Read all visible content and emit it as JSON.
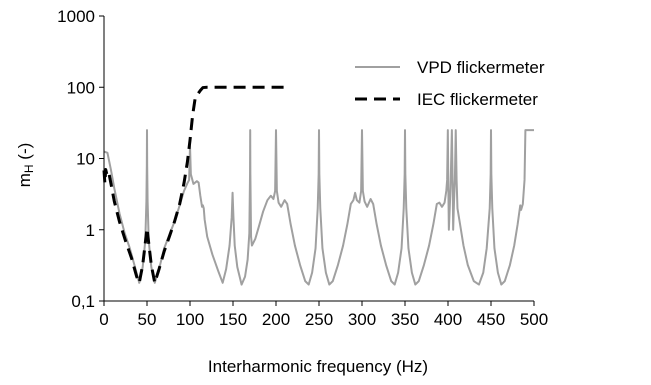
{
  "chart_data": {
    "type": "line",
    "title": "",
    "xlabel": "Interharmonic frequency (Hz)",
    "ylabel": {
      "main": "m",
      "sub": "H",
      "suffix": " (-)"
    },
    "xlim": [
      0,
      500
    ],
    "ylim": [
      0.1,
      1000
    ],
    "yscale": "log",
    "x_ticks": [
      "0",
      "50",
      "100",
      "150",
      "200",
      "250",
      "300",
      "350",
      "400",
      "450",
      "500"
    ],
    "x_tick_values": [
      0,
      50,
      100,
      150,
      200,
      250,
      300,
      350,
      400,
      450,
      500
    ],
    "y_ticks": [
      "0,1",
      "1",
      "10",
      "100",
      "1000"
    ],
    "y_tick_values": [
      0.1,
      1,
      10,
      100,
      1000
    ],
    "grid": false,
    "legend_position": "top-right",
    "series": [
      {
        "name": "VPD flickermeter",
        "color": "#a0a0a0",
        "style": "solid",
        "points": [
          [
            0,
            12.5
          ],
          [
            4,
            12
          ],
          [
            8,
            7
          ],
          [
            12,
            3.8
          ],
          [
            18,
            1.7
          ],
          [
            24,
            0.9
          ],
          [
            30,
            0.55
          ],
          [
            36,
            0.3
          ],
          [
            41,
            0.18
          ],
          [
            45,
            0.3
          ],
          [
            48,
            0.7
          ],
          [
            49.3,
            2.5
          ],
          [
            49.8,
            8
          ],
          [
            50,
            25
          ],
          [
            50.2,
            8
          ],
          [
            50.7,
            2.5
          ],
          [
            52,
            0.7
          ],
          [
            55,
            0.3
          ],
          [
            59,
            0.18
          ],
          [
            64,
            0.28
          ],
          [
            70,
            0.55
          ],
          [
            76,
            0.85
          ],
          [
            82,
            1.3
          ],
          [
            88,
            2.2
          ],
          [
            93,
            3.5
          ],
          [
            97,
            4.5
          ],
          [
            99,
            5
          ],
          [
            100,
            15
          ],
          [
            101,
            6
          ],
          [
            104,
            4.4
          ],
          [
            108,
            4.8
          ],
          [
            110,
            4.6
          ],
          [
            112,
            3
          ],
          [
            114,
            2.1
          ],
          [
            115,
            2.2
          ],
          [
            116,
            2
          ],
          [
            117,
            1.4
          ],
          [
            120,
            0.8
          ],
          [
            126,
            0.45
          ],
          [
            133,
            0.26
          ],
          [
            138,
            0.18
          ],
          [
            142,
            0.28
          ],
          [
            146,
            0.6
          ],
          [
            148.5,
            1.5
          ],
          [
            149.5,
            3.3
          ],
          [
            150.5,
            1.5
          ],
          [
            152,
            0.6
          ],
          [
            155,
            0.3
          ],
          [
            160,
            0.17
          ],
          [
            164,
            0.22
          ],
          [
            167,
            0.38
          ],
          [
            169,
            0.9
          ],
          [
            169.8,
            6
          ],
          [
            170,
            25
          ],
          [
            170.2,
            6
          ],
          [
            171,
            0.8
          ],
          [
            172,
            0.6
          ],
          [
            176,
            0.75
          ],
          [
            180,
            1.1
          ],
          [
            185,
            1.8
          ],
          [
            190,
            2.6
          ],
          [
            194,
            3
          ],
          [
            197,
            2.7
          ],
          [
            199,
            3.5
          ],
          [
            200,
            25
          ],
          [
            201,
            3.5
          ],
          [
            203,
            2.4
          ],
          [
            206,
            2.1
          ],
          [
            210,
            2.6
          ],
          [
            213,
            2.3
          ],
          [
            217,
            1.2
          ],
          [
            222,
            0.6
          ],
          [
            228,
            0.32
          ],
          [
            234,
            0.19
          ],
          [
            238,
            0.17
          ],
          [
            242,
            0.25
          ],
          [
            246,
            0.55
          ],
          [
            248.5,
            2
          ],
          [
            249.6,
            6
          ],
          [
            250,
            25
          ],
          [
            250.4,
            6
          ],
          [
            251.5,
            2
          ],
          [
            254,
            0.55
          ],
          [
            258,
            0.25
          ],
          [
            262,
            0.17
          ],
          [
            266,
            0.19
          ],
          [
            272,
            0.32
          ],
          [
            278,
            0.6
          ],
          [
            283,
            1.2
          ],
          [
            287,
            2.3
          ],
          [
            290,
            2.6
          ],
          [
            292,
            3.3
          ],
          [
            294,
            2.6
          ],
          [
            297,
            2.4
          ],
          [
            299,
            3.5
          ],
          [
            300,
            25
          ],
          [
            301,
            3.5
          ],
          [
            303,
            2.5
          ],
          [
            306,
            2.1
          ],
          [
            310,
            2.7
          ],
          [
            313,
            2.3
          ],
          [
            317,
            1.2
          ],
          [
            322,
            0.6
          ],
          [
            328,
            0.32
          ],
          [
            334,
            0.19
          ],
          [
            338,
            0.17
          ],
          [
            342,
            0.25
          ],
          [
            346,
            0.55
          ],
          [
            348.5,
            2
          ],
          [
            349.6,
            6
          ],
          [
            350,
            25
          ],
          [
            350.4,
            6
          ],
          [
            351.5,
            2
          ],
          [
            354,
            0.55
          ],
          [
            358,
            0.25
          ],
          [
            362,
            0.17
          ],
          [
            366,
            0.19
          ],
          [
            372,
            0.32
          ],
          [
            378,
            0.6
          ],
          [
            383,
            1.2
          ],
          [
            387,
            2.3
          ],
          [
            390,
            2.4
          ],
          [
            393,
            2.1
          ],
          [
            396,
            2.4
          ],
          [
            398,
            3.5
          ],
          [
            399,
            5
          ],
          [
            399.8,
            25
          ],
          [
            400.3,
            5
          ],
          [
            401,
            1
          ],
          [
            402,
            2
          ],
          [
            403,
            4
          ],
          [
            404.5,
            25
          ],
          [
            405.5,
            4
          ],
          [
            406,
            1
          ],
          [
            407,
            2.5
          ],
          [
            408,
            5
          ],
          [
            409,
            25
          ],
          [
            410,
            5
          ],
          [
            411,
            2
          ],
          [
            414,
            1.2
          ],
          [
            418,
            0.6
          ],
          [
            423,
            0.32
          ],
          [
            430,
            0.19
          ],
          [
            436,
            0.17
          ],
          [
            441,
            0.25
          ],
          [
            445,
            0.55
          ],
          [
            448.5,
            2
          ],
          [
            449.6,
            6
          ],
          [
            450,
            25
          ],
          [
            450.4,
            6
          ],
          [
            451.5,
            2
          ],
          [
            454,
            0.55
          ],
          [
            458,
            0.25
          ],
          [
            462,
            0.17
          ],
          [
            466,
            0.19
          ],
          [
            472,
            0.32
          ],
          [
            477,
            0.6
          ],
          [
            481,
            1.2
          ],
          [
            484,
            2.2
          ],
          [
            485,
            1.9
          ],
          [
            487,
            2.3
          ],
          [
            489,
            5
          ],
          [
            490,
            25
          ],
          [
            500,
            25
          ]
        ]
      },
      {
        "name": "IEC flickermeter",
        "color": "#000000",
        "style": "dashed",
        "points": [
          [
            0,
            6.8
          ],
          [
            1,
            4.5
          ],
          [
            2,
            7
          ],
          [
            4,
            5.5
          ],
          [
            6,
            6
          ],
          [
            8,
            4.5
          ],
          [
            12,
            2.5
          ],
          [
            18,
            1.3
          ],
          [
            25,
            0.7
          ],
          [
            32,
            0.4
          ],
          [
            38,
            0.22
          ],
          [
            41,
            0.18
          ],
          [
            45,
            0.32
          ],
          [
            48,
            0.65
          ],
          [
            50,
            1.05
          ],
          [
            52,
            0.65
          ],
          [
            55,
            0.32
          ],
          [
            59,
            0.18
          ],
          [
            64,
            0.28
          ],
          [
            70,
            0.5
          ],
          [
            76,
            0.8
          ],
          [
            82,
            1.3
          ],
          [
            88,
            2.3
          ],
          [
            93,
            4.5
          ],
          [
            97,
            9
          ],
          [
            100,
            18
          ],
          [
            103,
            40
          ],
          [
            106,
            70
          ],
          [
            109,
            80
          ],
          [
            112,
            90
          ],
          [
            115,
            99
          ],
          [
            120,
            100
          ],
          [
            212,
            100
          ]
        ]
      }
    ]
  }
}
